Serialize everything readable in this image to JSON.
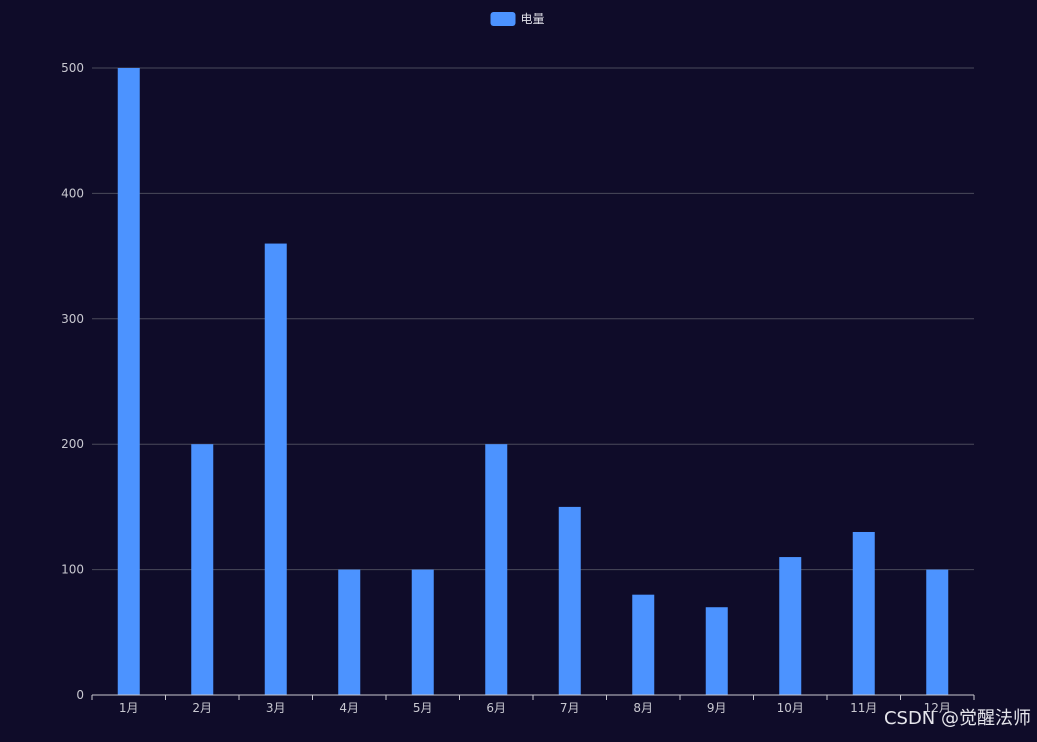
{
  "colors": {
    "background": "#0f0c29",
    "bar": "#4c93ff",
    "grid": "#4a4a5a",
    "axis_text": "#c8c8d0",
    "legend_text": "#e0e0e8",
    "watermark": "#e6e6ec"
  },
  "legend": {
    "placement": "top-center",
    "icon": "rounded-rect-swatch"
  },
  "watermark": {
    "text": "CSDN @觉醒法师"
  },
  "chart_data": {
    "type": "bar",
    "categories": [
      "1月",
      "2月",
      "3月",
      "4月",
      "5月",
      "6月",
      "7月",
      "8月",
      "9月",
      "10月",
      "11月",
      "12月"
    ],
    "series": [
      {
        "name": "电量",
        "values": [
          500,
          200,
          360,
          100,
          100,
          200,
          150,
          80,
          70,
          110,
          130,
          100
        ]
      }
    ],
    "yticks": [
      0,
      100,
      200,
      300,
      400,
      500
    ],
    "ylim": [
      0,
      500
    ],
    "grid": "horizontal",
    "title": "",
    "xlabel": "",
    "ylabel": ""
  }
}
